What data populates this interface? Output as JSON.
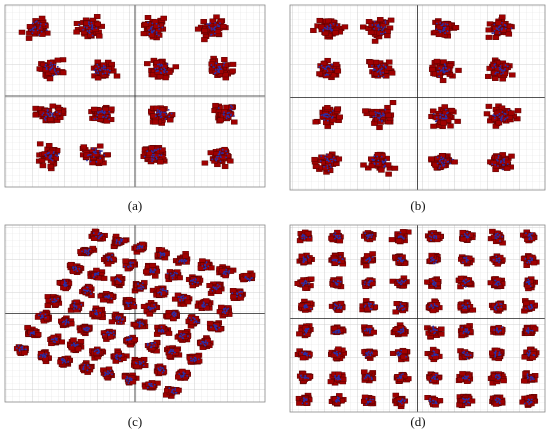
{
  "chart_data": [
    {
      "type": "scatter",
      "caption": "(a)",
      "color": "#a00000",
      "point_color": "#2a2fa8",
      "grid": true,
      "xlim": [
        -1,
        1
      ],
      "ylim": [
        -1,
        1
      ],
      "x": [
        -0.75,
        -0.35,
        0.15,
        0.6,
        -0.65,
        -0.25,
        0.2,
        0.65,
        -0.65,
        -0.25,
        0.2,
        0.7,
        -0.65,
        -0.3,
        0.15,
        0.65
      ],
      "y": [
        0.75,
        0.75,
        0.75,
        0.75,
        0.3,
        0.3,
        0.3,
        0.3,
        -0.2,
        -0.2,
        -0.2,
        -0.2,
        -0.65,
        -0.65,
        -0.65,
        -0.65
      ]
    },
    {
      "type": "scatter",
      "caption": "(b)",
      "color": "#a00000",
      "point_color": "#2a2fa8",
      "grid": true,
      "xlim": [
        -1,
        1
      ],
      "ylim": [
        -1,
        1
      ],
      "x": [
        -0.7,
        -0.3,
        0.2,
        0.65,
        -0.7,
        -0.3,
        0.2,
        0.65,
        -0.7,
        -0.3,
        0.2,
        0.65,
        -0.7,
        -0.3,
        0.2,
        0.65
      ],
      "y": [
        0.75,
        0.75,
        0.75,
        0.75,
        0.3,
        0.3,
        0.3,
        0.3,
        -0.2,
        -0.2,
        -0.2,
        -0.2,
        -0.7,
        -0.7,
        -0.7,
        -0.7
      ]
    },
    {
      "type": "scatter",
      "caption": "(c)",
      "color": "#a00000",
      "point_color": "#2a2fa8",
      "grid": true,
      "xlim": [
        -1,
        1
      ],
      "ylim": [
        -1,
        1
      ],
      "x": [
        -0.29,
        -0.12,
        0.04,
        0.21,
        0.37,
        0.54,
        0.7,
        0.87,
        -0.37,
        -0.2,
        -0.04,
        0.13,
        0.29,
        0.46,
        0.62,
        0.79,
        -0.46,
        -0.29,
        -0.13,
        0.04,
        0.2,
        0.37,
        0.53,
        0.7,
        -0.54,
        -0.37,
        -0.21,
        -0.04,
        0.12,
        0.29,
        0.45,
        0.62,
        -0.62,
        -0.45,
        -0.29,
        -0.12,
        0.04,
        0.21,
        0.37,
        0.54,
        -0.7,
        -0.53,
        -0.37,
        -0.2,
        -0.04,
        0.13,
        0.29,
        0.46,
        -0.79,
        -0.62,
        -0.46,
        -0.29,
        -0.13,
        0.04,
        0.2,
        0.37,
        -0.87,
        -0.7,
        -0.54,
        -0.37,
        -0.21,
        -0.04,
        0.12,
        0.29
      ],
      "y": [
        0.88,
        0.81,
        0.74,
        0.67,
        0.61,
        0.54,
        0.47,
        0.4,
        0.7,
        0.63,
        0.56,
        0.49,
        0.43,
        0.36,
        0.29,
        0.22,
        0.51,
        0.44,
        0.37,
        0.3,
        0.24,
        0.17,
        0.1,
        0.03,
        0.33,
        0.26,
        0.19,
        0.12,
        0.06,
        -0.01,
        -0.08,
        -0.15,
        0.15,
        0.08,
        0.01,
        -0.06,
        -0.12,
        -0.19,
        -0.26,
        -0.33,
        -0.03,
        -0.1,
        -0.17,
        -0.24,
        -0.3,
        -0.37,
        -0.44,
        -0.51,
        -0.22,
        -0.29,
        -0.36,
        -0.43,
        -0.49,
        -0.56,
        -0.63,
        -0.7,
        -0.4,
        -0.47,
        -0.54,
        -0.61,
        -0.67,
        -0.74,
        -0.81,
        -0.88
      ]
    },
    {
      "type": "scatter",
      "caption": "(d)",
      "color": "#a00000",
      "point_color": "#2a2fa8",
      "grid": true,
      "xlim": [
        -1,
        1
      ],
      "ylim": [
        -1,
        1
      ],
      "x": [
        -0.88,
        -0.63,
        -0.38,
        -0.13,
        0.13,
        0.38,
        0.63,
        0.88,
        -0.88,
        -0.63,
        -0.38,
        -0.13,
        0.13,
        0.38,
        0.63,
        0.88,
        -0.88,
        -0.63,
        -0.38,
        -0.13,
        0.13,
        0.38,
        0.63,
        0.88,
        -0.88,
        -0.63,
        -0.38,
        -0.13,
        0.13,
        0.38,
        0.63,
        0.88,
        -0.88,
        -0.63,
        -0.38,
        -0.13,
        0.13,
        0.38,
        0.63,
        0.88,
        -0.88,
        -0.63,
        -0.38,
        -0.13,
        0.13,
        0.38,
        0.63,
        0.88,
        -0.88,
        -0.63,
        -0.38,
        -0.13,
        0.13,
        0.38,
        0.63,
        0.88,
        -0.88,
        -0.63,
        -0.38,
        -0.13,
        0.13,
        0.38,
        0.63,
        0.88
      ],
      "y": [
        0.88,
        0.88,
        0.88,
        0.88,
        0.88,
        0.88,
        0.88,
        0.88,
        0.63,
        0.63,
        0.63,
        0.63,
        0.63,
        0.63,
        0.63,
        0.63,
        0.38,
        0.38,
        0.38,
        0.38,
        0.38,
        0.38,
        0.38,
        0.38,
        0.13,
        0.13,
        0.13,
        0.13,
        0.13,
        0.13,
        0.13,
        0.13,
        -0.13,
        -0.13,
        -0.13,
        -0.13,
        -0.13,
        -0.13,
        -0.13,
        -0.13,
        -0.38,
        -0.38,
        -0.38,
        -0.38,
        -0.38,
        -0.38,
        -0.38,
        -0.38,
        -0.63,
        -0.63,
        -0.63,
        -0.63,
        -0.63,
        -0.63,
        -0.63,
        -0.63,
        -0.88,
        -0.88,
        -0.88,
        -0.88,
        -0.88,
        -0.88,
        -0.88,
        -0.88
      ]
    }
  ]
}
